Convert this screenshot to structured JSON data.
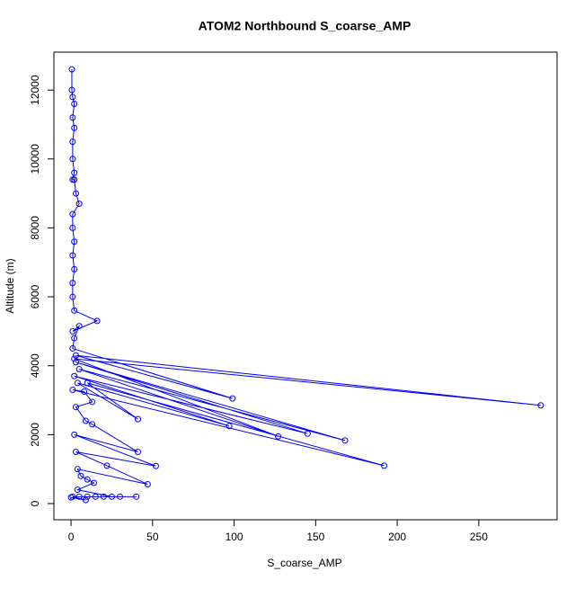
{
  "chart_data": {
    "type": "line",
    "title": "ATOM2 Northbound S_coarse_AMP",
    "x_label": "S_coarse_AMP",
    "y_label": "Altitude (m)",
    "x": [
      0.5,
      0.5,
      1,
      2,
      1,
      2,
      1,
      1,
      2,
      1,
      2,
      3,
      5,
      1,
      1,
      2,
      1,
      2,
      1,
      1,
      2,
      16,
      1,
      5,
      2,
      1,
      99,
      3,
      288,
      2,
      127,
      5,
      168,
      3,
      145,
      2,
      97,
      4,
      41,
      10,
      192,
      1,
      8,
      13,
      3,
      9,
      13,
      41,
      2,
      52,
      3,
      22,
      47,
      4,
      6,
      10,
      14,
      4,
      25,
      40,
      30,
      20,
      10,
      15,
      5,
      1,
      9,
      0
    ],
    "series": [
      {
        "name": "S_coarse_AMP",
        "color": "#0000ff",
        "values": [
          12600,
          12000,
          11800,
          11600,
          11200,
          10900,
          10500,
          10000,
          9600,
          9400,
          9400,
          9000,
          8700,
          8400,
          8000,
          7600,
          7200,
          6800,
          6400,
          6000,
          5600,
          5300,
          5000,
          5150,
          4800,
          4500,
          3050,
          4300,
          2850,
          4200,
          1950,
          3900,
          1830,
          4100,
          2030,
          3700,
          2250,
          3500,
          2450,
          3500,
          1100,
          3300,
          3250,
          2950,
          2800,
          2400,
          2300,
          1500,
          2000,
          1090,
          1500,
          1100,
          560,
          1000,
          800,
          700,
          600,
          400,
          200,
          200,
          200,
          200,
          200,
          200,
          200,
          200,
          100,
          180
        ]
      }
    ],
    "xlim": [
      -10.5,
      298
    ],
    "ylim": [
      -470,
      13100
    ],
    "xticks": [
      0,
      50,
      100,
      150,
      200,
      250
    ],
    "yticks": [
      0,
      2000,
      4000,
      6000,
      8000,
      10000,
      12000
    ]
  }
}
